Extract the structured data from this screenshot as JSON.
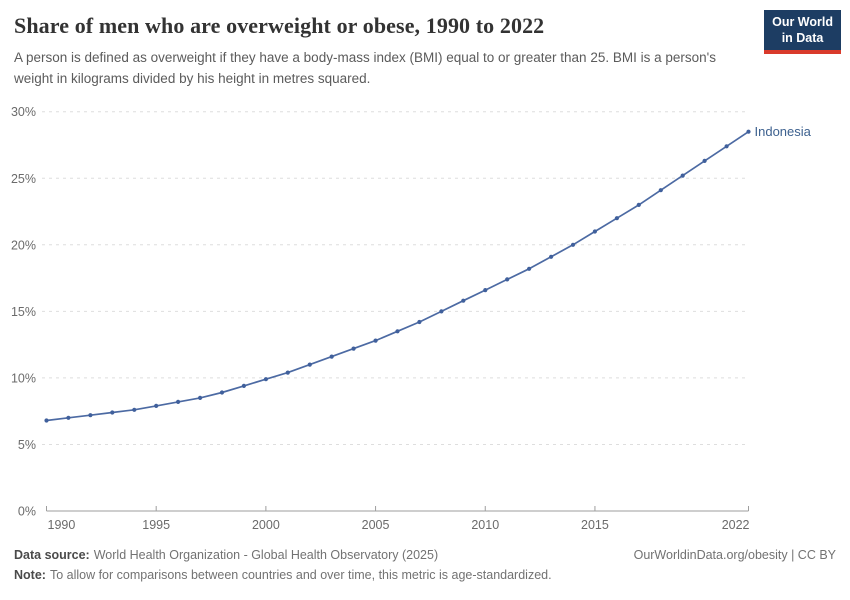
{
  "header": {
    "title": "Share of men who are overweight or obese, 1990 to 2022",
    "subtitle": "A person is defined as overweight if they have a body-mass index (BMI) equal to or greater than 25. BMI is a person's weight in kilograms divided by his height in metres squared.",
    "logo_line1": "Our World",
    "logo_line2": "in Data"
  },
  "chart_data": {
    "type": "line",
    "title": "Share of men who are overweight or obese, 1990 to 2022",
    "xlabel": "",
    "ylabel": "",
    "xlim": [
      1990,
      2022
    ],
    "ylim": [
      0,
      30
    ],
    "grid": "horizontal-dashed",
    "legend_position": "label-at-line-end",
    "x_tick_years": [
      1990,
      1995,
      2000,
      2005,
      2010,
      2015,
      2022
    ],
    "x_tick_labels": [
      "1990",
      "1995",
      "2000",
      "2005",
      "2010",
      "2015",
      "2022"
    ],
    "y_tick_values": [
      0,
      5,
      10,
      15,
      20,
      25,
      30
    ],
    "y_tick_suffix": "%",
    "series": [
      {
        "name": "Indonesia",
        "color": "#4c6aa3",
        "years": [
          1990,
          1991,
          1992,
          1993,
          1994,
          1995,
          1996,
          1997,
          1998,
          1999,
          2000,
          2001,
          2002,
          2003,
          2004,
          2005,
          2006,
          2007,
          2008,
          2009,
          2010,
          2011,
          2012,
          2013,
          2014,
          2015,
          2016,
          2017,
          2018,
          2019,
          2020,
          2021,
          2022
        ],
        "values": [
          6.8,
          7.0,
          7.2,
          7.4,
          7.6,
          7.9,
          8.2,
          8.5,
          8.9,
          9.4,
          9.9,
          10.4,
          11.0,
          11.6,
          12.2,
          12.8,
          13.5,
          14.2,
          15.0,
          15.8,
          16.6,
          17.4,
          18.2,
          19.1,
          20.0,
          21.0,
          22.0,
          23.0,
          24.1,
          25.2,
          26.3,
          27.4,
          28.5
        ]
      }
    ]
  },
  "footer": {
    "datasource_label": "Data source:",
    "datasource_text": "World Health Organization - Global Health Observatory (2025)",
    "note_label": "Note:",
    "note_text": "To allow for comparisons between countries and over time, this metric is age-standardized.",
    "rights": "OurWorldinData.org/obesity | CC BY"
  },
  "colors": {
    "line": "#4c6aa3",
    "marker": "#40609c",
    "entity_label": "#3d618f",
    "axis": "#9e9e9e",
    "tick_label": "#6b6b6b",
    "gridline": "#dedede",
    "logo_bg": "#1d3d63",
    "logo_accent": "#d93a2b"
  }
}
